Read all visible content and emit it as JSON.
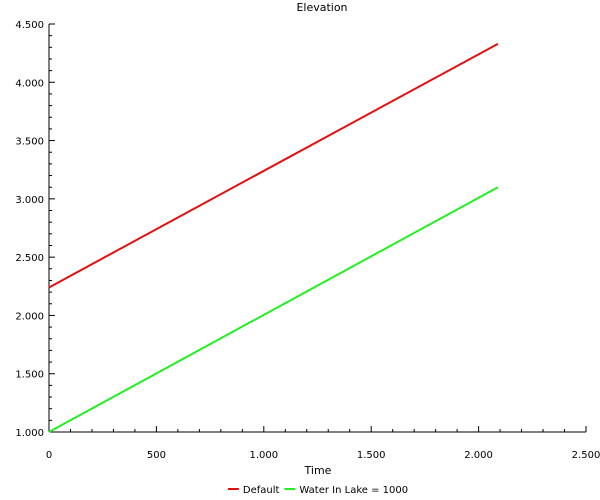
{
  "chart_data": {
    "type": "line",
    "title": "Elevation",
    "xlabel": "Time",
    "ylabel": "",
    "xlim": [
      0,
      2500
    ],
    "ylim": [
      1.0,
      4.5
    ],
    "x_ticks": [
      0,
      500,
      1000,
      1500,
      2000,
      2500
    ],
    "x_tick_labels": [
      "0",
      "500",
      "1.000",
      "1.500",
      "2.000",
      "2.500"
    ],
    "y_ticks": [
      1.0,
      1.5,
      2.0,
      2.5,
      3.0,
      3.5,
      4.0,
      4.5
    ],
    "y_tick_labels": [
      "1.000",
      "1.500",
      "2.000",
      "2.500",
      "3.000",
      "3.500",
      "4.000",
      "4.500"
    ],
    "grid": false,
    "legend_position": "bottom",
    "series": [
      {
        "name": "Default",
        "color": "#e01010",
        "x": [
          0,
          2090
        ],
        "y": [
          2.24,
          4.33
        ]
      },
      {
        "name": "Water In Lake = 1000",
        "color": "#22ee22",
        "x": [
          0,
          2090
        ],
        "y": [
          1.0,
          3.1
        ]
      }
    ]
  }
}
